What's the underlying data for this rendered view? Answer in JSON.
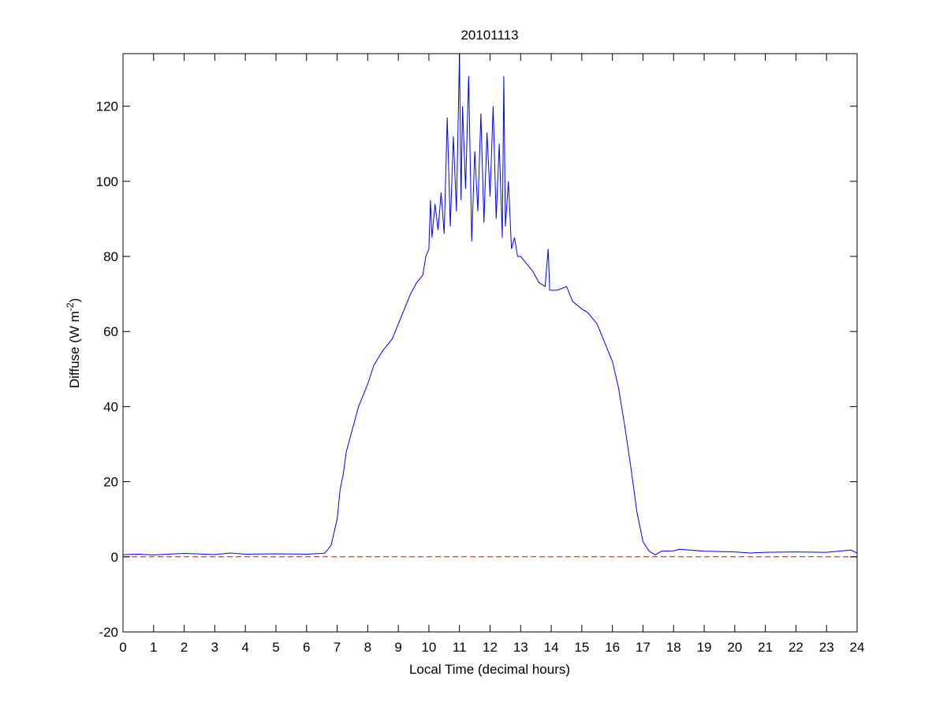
{
  "chart_data": {
    "type": "line",
    "title": "20101113",
    "xlabel": "Local Time (decimal hours)",
    "ylabel": {
      "text": "Diffuse (W m",
      "sup": "-2",
      "after": ")"
    },
    "series": [
      {
        "color": "#0000ff",
        "x": [
          0,
          0.5,
          1,
          2,
          3,
          3.5,
          4,
          5,
          6,
          6.5,
          6.6,
          6.8,
          7.0,
          7.1,
          7.2,
          7.3,
          7.5,
          7.7,
          8.0,
          8.2,
          8.5,
          8.8,
          9.0,
          9.2,
          9.4,
          9.6,
          9.8,
          9.9,
          10.0,
          10.05,
          10.1,
          10.2,
          10.3,
          10.4,
          10.5,
          10.6,
          10.7,
          10.8,
          10.9,
          11.0,
          11.05,
          11.1,
          11.2,
          11.3,
          11.4,
          11.5,
          11.6,
          11.7,
          11.8,
          11.9,
          12.0,
          12.1,
          12.2,
          12.3,
          12.4,
          12.45,
          12.5,
          12.6,
          12.7,
          12.8,
          12.9,
          13.0,
          13.2,
          13.4,
          13.6,
          13.8,
          13.9,
          13.95,
          14.2,
          14.5,
          14.7,
          15.0,
          15.2,
          15.5,
          15.8,
          16.0,
          16.2,
          16.4,
          16.6,
          16.8,
          17.0,
          17.2,
          17.4,
          17.6,
          18.0,
          18.2,
          19.0,
          20.0,
          20.5,
          21.0,
          22.0,
          23.0,
          23.8,
          24.0
        ],
        "values": [
          0.6,
          0.7,
          0.5,
          0.9,
          0.6,
          1.0,
          0.7,
          0.8,
          0.7,
          0.9,
          1,
          3,
          10,
          18,
          22,
          28,
          34,
          40,
          46,
          51,
          55,
          58,
          62,
          66,
          70,
          73,
          75,
          80,
          82,
          95,
          85,
          94,
          87,
          97,
          86,
          117,
          88,
          112,
          92,
          134,
          95,
          120,
          98,
          128,
          84,
          108,
          92,
          118,
          89,
          113,
          96,
          120,
          90,
          110,
          85,
          128,
          88,
          100,
          82,
          85,
          80,
          80,
          78,
          76,
          73,
          72,
          82,
          71,
          71,
          72,
          68,
          66,
          65,
          62,
          56,
          52,
          45,
          35,
          24,
          12,
          4,
          1.5,
          0.5,
          1.5,
          1.6,
          2,
          1.5,
          1.3,
          1.0,
          1.2,
          1.3,
          1.2,
          1.8,
          1.0
        ]
      },
      {
        "color": "#ff0000",
        "dash": true,
        "x": [
          0,
          24
        ],
        "values": [
          0,
          0
        ]
      }
    ],
    "xlim": [
      0,
      24
    ],
    "xticks": [
      0,
      1,
      2,
      3,
      4,
      5,
      6,
      7,
      8,
      9,
      10,
      11,
      12,
      13,
      14,
      15,
      16,
      17,
      18,
      19,
      20,
      21,
      22,
      23,
      24
    ],
    "ylim": [
      -20,
      134
    ],
    "yticks": [
      -20,
      0,
      20,
      40,
      60,
      80,
      100,
      120
    ],
    "grid": false
  }
}
